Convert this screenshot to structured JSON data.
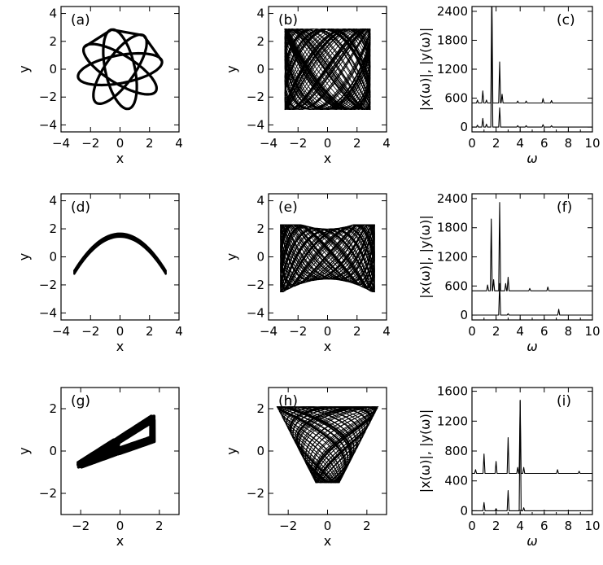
{
  "chart_data": [
    {
      "id": "a",
      "type": "line",
      "label": "(a)",
      "xlabel": "x",
      "ylabel": "y",
      "xlim": [
        -4,
        4
      ],
      "ylim": [
        -4.5,
        4.5
      ],
      "xticks": [
        -4,
        -2,
        0,
        2,
        4
      ],
      "yticks": [
        -4,
        -2,
        0,
        2,
        4
      ],
      "pattern": "rosette"
    },
    {
      "id": "b",
      "type": "line",
      "label": "(b)",
      "xlabel": "x",
      "ylabel": "y",
      "xlim": [
        -4,
        4
      ],
      "ylim": [
        -4.5,
        4.5
      ],
      "xticks": [
        -4,
        -2,
        0,
        2,
        4
      ],
      "yticks": [
        -4,
        -2,
        0,
        2,
        4
      ],
      "pattern": "chaotic-square"
    },
    {
      "id": "c",
      "type": "line",
      "label": "(c)",
      "xlabel": "ω",
      "ylabel": "|x(ω)|, |y(ω)|",
      "xlim": [
        0,
        10
      ],
      "ylim": [
        -100,
        2500
      ],
      "xticks": [
        0,
        2,
        4,
        6,
        8,
        10
      ],
      "yticks": [
        0,
        600,
        1200,
        1800,
        2400
      ],
      "series": [
        {
          "baseline": 500,
          "peaks": [
            [
              0.45,
              60
            ],
            [
              0.9,
              250
            ],
            [
              1.2,
              60
            ],
            [
              1.65,
              2400
            ],
            [
              2.3,
              850
            ],
            [
              2.5,
              180
            ],
            [
              3.8,
              40
            ],
            [
              4.5,
              40
            ],
            [
              5.9,
              90
            ],
            [
              6.6,
              50
            ]
          ]
        },
        {
          "baseline": 0,
          "peaks": [
            [
              0.45,
              40
            ],
            [
              0.9,
              180
            ],
            [
              1.2,
              60
            ],
            [
              1.65,
              2400
            ],
            [
              2.3,
              400
            ],
            [
              3.8,
              30
            ],
            [
              4.5,
              30
            ],
            [
              5.9,
              50
            ],
            [
              6.6,
              30
            ]
          ]
        }
      ]
    },
    {
      "id": "d",
      "type": "line",
      "label": "(d)",
      "xlabel": "x",
      "ylabel": "y",
      "xlim": [
        -4,
        4
      ],
      "ylim": [
        -4.5,
        4.5
      ],
      "xticks": [
        -4,
        -2,
        0,
        2,
        4
      ],
      "yticks": [
        -4,
        -2,
        0,
        2,
        4
      ],
      "pattern": "x-shape"
    },
    {
      "id": "e",
      "type": "line",
      "label": "(e)",
      "xlabel": "x",
      "ylabel": "y",
      "xlim": [
        -4,
        4
      ],
      "ylim": [
        -4.5,
        4.5
      ],
      "xticks": [
        -4,
        -2,
        0,
        2,
        4
      ],
      "yticks": [
        -4,
        -2,
        0,
        2,
        4
      ],
      "pattern": "chaotic-x"
    },
    {
      "id": "f",
      "type": "line",
      "label": "(f)",
      "xlabel": "ω",
      "ylabel": "|x(ω)|, |y(ω)|",
      "xlim": [
        0,
        10
      ],
      "ylim": [
        -100,
        2500
      ],
      "xticks": [
        0,
        2,
        4,
        6,
        8,
        10
      ],
      "yticks": [
        0,
        600,
        1200,
        1800,
        2400
      ],
      "series": [
        {
          "baseline": 500,
          "peaks": [
            [
              1.3,
              120
            ],
            [
              1.6,
              1480
            ],
            [
              1.8,
              230
            ],
            [
              2.3,
              1820
            ],
            [
              2.8,
              150
            ],
            [
              3.0,
              280
            ],
            [
              4.8,
              50
            ],
            [
              6.3,
              80
            ]
          ]
        },
        {
          "baseline": 0,
          "peaks": [
            [
              2.3,
              650
            ],
            [
              3.0,
              30
            ],
            [
              7.2,
              120
            ]
          ]
        }
      ]
    },
    {
      "id": "g",
      "type": "line",
      "label": "(g)",
      "xlabel": "x",
      "ylabel": "y",
      "xlim": [
        -3,
        3
      ],
      "ylim": [
        -3,
        3
      ],
      "xticks": [
        -2,
        0,
        2
      ],
      "yticks": [
        -2,
        0,
        2
      ],
      "pattern": "band"
    },
    {
      "id": "h",
      "type": "line",
      "label": "(h)",
      "xlabel": "x",
      "ylabel": "y",
      "xlim": [
        -3,
        3
      ],
      "ylim": [
        -3,
        3
      ],
      "xticks": [
        -2,
        0,
        2
      ],
      "yticks": [
        -2,
        0,
        2
      ],
      "pattern": "chaotic-fan"
    },
    {
      "id": "i",
      "type": "line",
      "label": "(i)",
      "xlabel": "ω",
      "ylabel": "|x(ω)|, |y(ω)|",
      "xlim": [
        0,
        10
      ],
      "ylim": [
        -50,
        1650
      ],
      "xticks": [
        0,
        2,
        4,
        6,
        8,
        10
      ],
      "yticks": [
        0,
        400,
        800,
        1200,
        1600
      ],
      "series": [
        {
          "baseline": 500,
          "peaks": [
            [
              0.3,
              50
            ],
            [
              1.0,
              260
            ],
            [
              2.0,
              160
            ],
            [
              3.0,
              480
            ],
            [
              3.8,
              80
            ],
            [
              4.0,
              980
            ],
            [
              4.3,
              80
            ],
            [
              7.1,
              50
            ],
            [
              8.9,
              30
            ]
          ]
        },
        {
          "baseline": 0,
          "peaks": [
            [
              1.0,
              110
            ],
            [
              2.0,
              30
            ],
            [
              3.0,
              270
            ],
            [
              4.0,
              1470
            ],
            [
              4.3,
              40
            ]
          ]
        }
      ]
    }
  ]
}
